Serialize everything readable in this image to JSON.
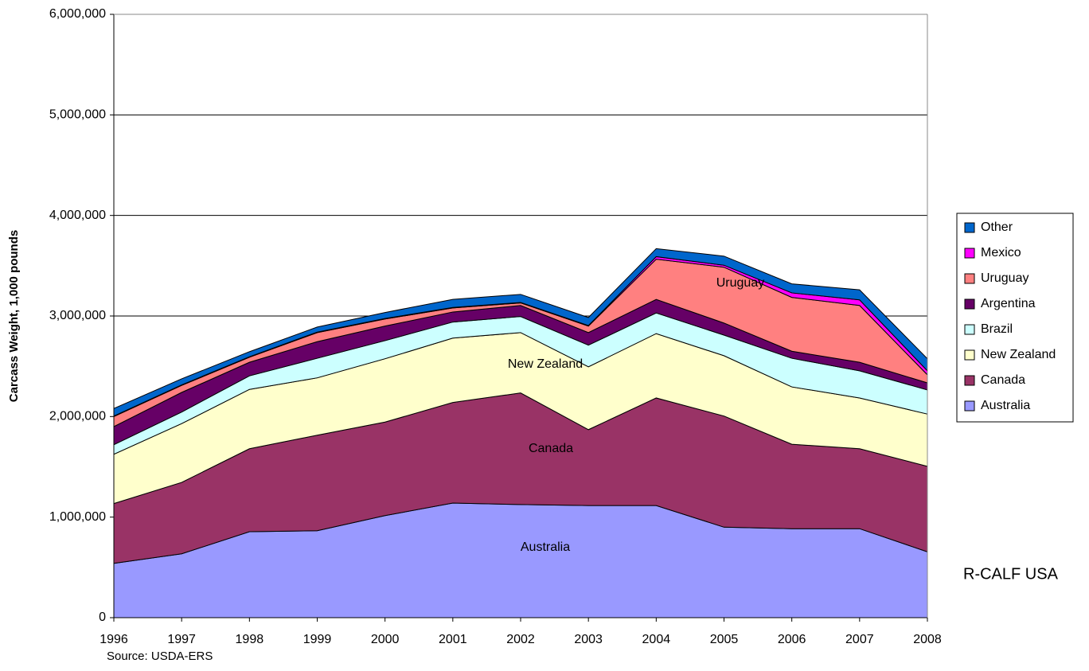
{
  "chart_data": {
    "type": "stacked_area",
    "y_label": "Carcass Weight, 1,000 pounds",
    "source": "Source:  USDA-ERS",
    "watermark": "R-CALF USA",
    "categories": [
      "1996",
      "1997",
      "1998",
      "1999",
      "2000",
      "2001",
      "2002",
      "2003",
      "2004",
      "2005",
      "2006",
      "2007",
      "2008"
    ],
    "ylim": [
      0,
      6000000
    ],
    "yticks": [
      0,
      {
        "value": 1000000,
        "label": "1,000,000"
      },
      {
        "value": 2000000,
        "label": "2,000,000"
      },
      {
        "value": 3000000,
        "label": "3,000,000"
      },
      {
        "value": 4000000,
        "label": "4,000,000"
      },
      {
        "value": 5000000,
        "label": "5,000,000"
      },
      {
        "value": 6000000,
        "label": "6,000,000"
      }
    ],
    "grid": true,
    "legend": "right",
    "series": [
      {
        "name": "Australia",
        "color": "#9999ff",
        "values": [
          540000,
          635000,
          855000,
          865000,
          1015000,
          1140000,
          1125000,
          1115000,
          1115000,
          900000,
          885000,
          885000,
          655000
        ]
      },
      {
        "name": "Canada",
        "color": "#993366",
        "values": [
          595000,
          710000,
          825000,
          950000,
          930000,
          1000000,
          1110000,
          755000,
          1070000,
          1105000,
          840000,
          795000,
          850000
        ]
      },
      {
        "name": "New Zealand",
        "color": "#ffffcc",
        "values": [
          490000,
          585000,
          590000,
          570000,
          630000,
          640000,
          600000,
          625000,
          640000,
          600000,
          570000,
          505000,
          520000
        ]
      },
      {
        "name": "Brazil",
        "color": "#ccffff",
        "values": [
          95000,
          115000,
          135000,
          195000,
          180000,
          160000,
          160000,
          215000,
          205000,
          205000,
          285000,
          270000,
          240000
        ]
      },
      {
        "name": "Argentina",
        "color": "#660066",
        "values": [
          180000,
          195000,
          135000,
          165000,
          145000,
          100000,
          110000,
          125000,
          135000,
          120000,
          70000,
          85000,
          70000
        ]
      },
      {
        "name": "Uruguay",
        "color": "#ff8080",
        "values": [
          100000,
          70000,
          50000,
          90000,
          70000,
          40000,
          25000,
          65000,
          400000,
          555000,
          535000,
          565000,
          80000
        ]
      },
      {
        "name": "Mexico",
        "color": "#ff00ff",
        "values": [
          5000,
          5000,
          5000,
          5000,
          5000,
          5000,
          5000,
          5000,
          25000,
          20000,
          45000,
          55000,
          40000
        ]
      },
      {
        "name": "Other",
        "color": "#0066cc",
        "values": [
          75000,
          60000,
          50000,
          50000,
          60000,
          80000,
          80000,
          80000,
          80000,
          90000,
          90000,
          100000,
          120000
        ]
      }
    ]
  }
}
